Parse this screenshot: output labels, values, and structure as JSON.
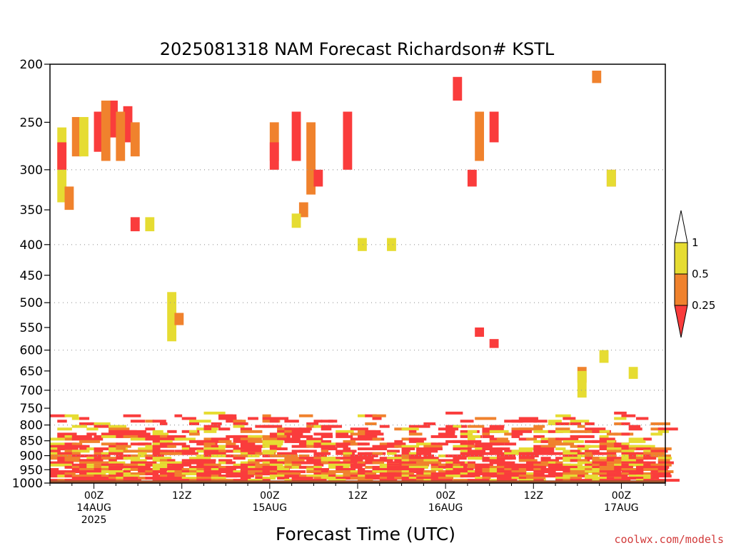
{
  "chart_data": {
    "type": "heatmap",
    "title": "2025081318 NAM Forecast Richardson# KSTL",
    "xlabel": "Forecast Time (UTC)",
    "ylabel": "",
    "y_scale": "log",
    "y_reversed": true,
    "ylim": [
      1000,
      200
    ],
    "y_ticks": [
      200,
      250,
      300,
      350,
      400,
      450,
      500,
      550,
      600,
      650,
      700,
      750,
      800,
      850,
      900,
      950,
      1000
    ],
    "grid_levels": [
      300,
      400,
      500,
      600,
      700,
      800,
      900
    ],
    "grid": "dotted horizontal",
    "x_ticks": [
      {
        "t": "2025-08-14T00Z",
        "lines": [
          "00Z",
          "14AUG",
          "2025"
        ]
      },
      {
        "t": "2025-08-14T12Z",
        "lines": [
          "12Z"
        ]
      },
      {
        "t": "2025-08-15T00Z",
        "lines": [
          "00Z",
          "15AUG"
        ]
      },
      {
        "t": "2025-08-15T12Z",
        "lines": [
          "12Z"
        ]
      },
      {
        "t": "2025-08-16T00Z",
        "lines": [
          "00Z",
          "16AUG"
        ]
      },
      {
        "t": "2025-08-16T12Z",
        "lines": [
          "12Z"
        ]
      },
      {
        "t": "2025-08-17T00Z",
        "lines": [
          "00Z",
          "17AUG"
        ]
      }
    ],
    "xlim": [
      "2025-08-13T18Z",
      "2025-08-17T06Z"
    ],
    "legend": {
      "placement": "right",
      "labels": [
        "1",
        "0.5",
        "0.25"
      ],
      "bins": [
        {
          "range": "> 1",
          "color": "#ffffff"
        },
        {
          "range": "0.5 - 1",
          "color": "#e6dc32"
        },
        {
          "range": "0.25 - 0.5",
          "color": "#f0822d"
        },
        {
          "range": "< 0.25",
          "color": "#fa3c3c"
        }
      ]
    },
    "colors": {
      "yellow": "#e6dc32",
      "orange": "#f0822d",
      "red": "#fa3c3c",
      "ground": "#a0522d"
    },
    "cells": [
      {
        "t": "2025-08-14T00Z",
        "p0": 240,
        "p1": 280,
        "v": 0.2
      },
      {
        "t": "2025-08-14T02Z",
        "p0": 230,
        "p1": 265,
        "v": 0.2
      },
      {
        "t": "2025-08-14T04Z",
        "p0": 235,
        "p1": 270,
        "v": 0.2
      },
      {
        "t": "2025-08-14T01Z",
        "p0": 230,
        "p1": 290,
        "v": 0.4
      },
      {
        "t": "2025-08-14T03Z",
        "p0": 240,
        "p1": 290,
        "v": 0.4
      },
      {
        "t": "2025-08-14T05Z",
        "p0": 250,
        "p1": 285,
        "v": 0.4
      },
      {
        "t": "2025-08-13T21Z",
        "p0": 245,
        "p1": 285,
        "v": 0.4
      },
      {
        "t": "2025-08-13T22Z",
        "p0": 245,
        "p1": 285,
        "v": 0.7
      },
      {
        "t": "2025-08-13T19Z",
        "p0": 255,
        "p1": 340,
        "v": 0.7
      },
      {
        "t": "2025-08-13T19Z",
        "p0": 270,
        "p1": 300,
        "v": 0.2
      },
      {
        "t": "2025-08-13T20Z",
        "p0": 320,
        "p1": 350,
        "v": 0.4
      },
      {
        "t": "2025-08-14T05Z",
        "p0": 360,
        "p1": 380,
        "v": 0.2
      },
      {
        "t": "2025-08-14T07Z",
        "p0": 360,
        "p1": 380,
        "v": 0.7
      },
      {
        "t": "2025-08-15T00Z",
        "p0": 250,
        "p1": 290,
        "v": 0.4
      },
      {
        "t": "2025-08-15T00Z",
        "p0": 270,
        "p1": 300,
        "v": 0.2
      },
      {
        "t": "2025-08-15T03Z",
        "p0": 240,
        "p1": 290,
        "v": 0.2
      },
      {
        "t": "2025-08-15T05Z",
        "p0": 250,
        "p1": 330,
        "v": 0.4
      },
      {
        "t": "2025-08-15T06Z",
        "p0": 300,
        "p1": 320,
        "v": 0.2
      },
      {
        "t": "2025-08-15T10Z",
        "p0": 240,
        "p1": 300,
        "v": 0.2
      },
      {
        "t": "2025-08-15T04Z",
        "p0": 340,
        "p1": 360,
        "v": 0.4
      },
      {
        "t": "2025-08-15T03Z",
        "p0": 355,
        "p1": 375,
        "v": 0.7
      },
      {
        "t": "2025-08-15T12Z",
        "p0": 390,
        "p1": 410,
        "v": 0.7
      },
      {
        "t": "2025-08-15T16Z",
        "p0": 390,
        "p1": 410,
        "v": 0.7
      },
      {
        "t": "2025-08-14T10Z",
        "p0": 480,
        "p1": 580,
        "v": 0.7
      },
      {
        "t": "2025-08-14T11Z",
        "p0": 520,
        "p1": 545,
        "v": 0.4
      },
      {
        "t": "2025-08-16T01Z",
        "p0": 210,
        "p1": 230,
        "v": 0.2
      },
      {
        "t": "2025-08-16T04Z",
        "p0": 240,
        "p1": 290,
        "v": 0.4
      },
      {
        "t": "2025-08-16T06Z",
        "p0": 240,
        "p1": 270,
        "v": 0.2
      },
      {
        "t": "2025-08-16T03Z",
        "p0": 300,
        "p1": 320,
        "v": 0.2
      },
      {
        "t": "2025-08-16T22Z",
        "p0": 300,
        "p1": 320,
        "v": 0.2
      },
      {
        "t": "2025-08-16T22Z",
        "p0": 300,
        "p1": 320,
        "v": 0.7
      },
      {
        "t": "2025-08-16T20Z",
        "p0": 205,
        "p1": 215,
        "v": 0.4
      },
      {
        "t": "2025-08-16T04Z",
        "p0": 550,
        "p1": 570,
        "v": 0.2
      },
      {
        "t": "2025-08-16T06Z",
        "p0": 575,
        "p1": 595,
        "v": 0.2
      },
      {
        "t": "2025-08-16T18Z",
        "p0": 640,
        "p1": 680,
        "v": 0.4
      },
      {
        "t": "2025-08-16T18Z",
        "p0": 650,
        "p1": 720,
        "v": 0.7
      },
      {
        "t": "2025-08-16T21Z",
        "p0": 600,
        "p1": 630,
        "v": 0.7
      },
      {
        "t": "2025-08-17T01Z",
        "p0": 640,
        "p1": 670,
        "v": 0.7
      }
    ]
  }
}
